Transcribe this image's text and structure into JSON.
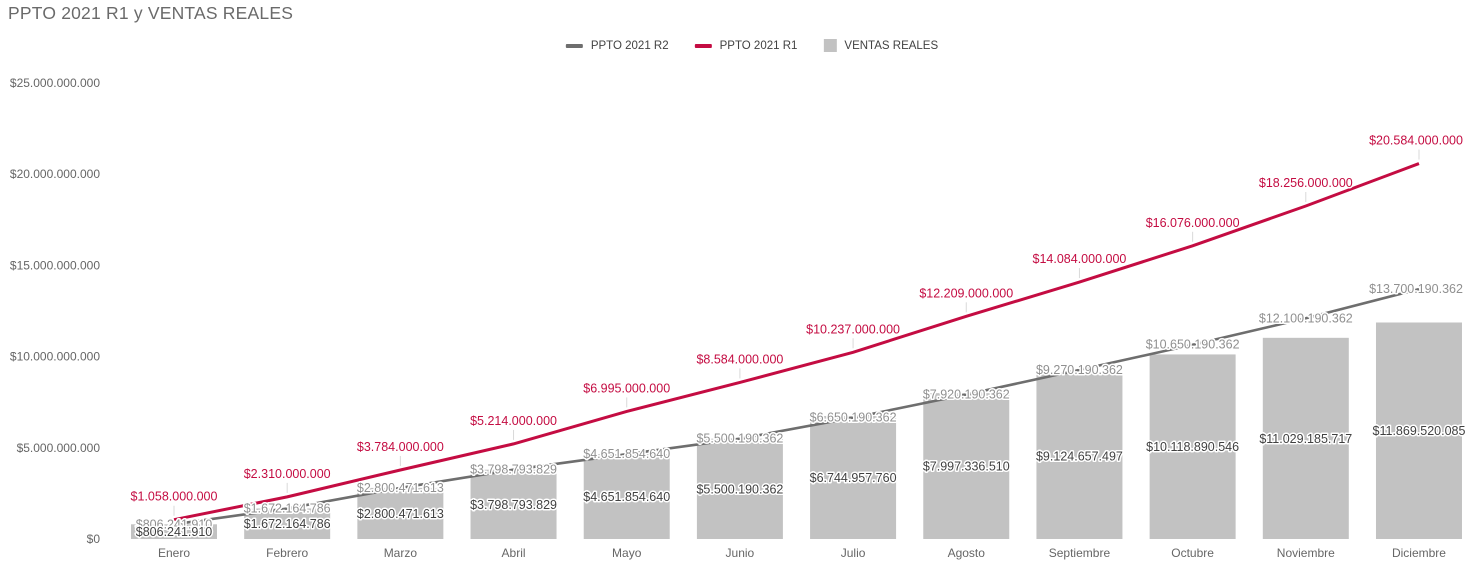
{
  "title": "PPTO 2021 R1 y VENTAS REALES",
  "legend": {
    "items": [
      {
        "label": "PPTO 2021 R2",
        "swatch": "line",
        "color": "#6e6e6e"
      },
      {
        "label": "PPTO 2021 R1",
        "swatch": "line",
        "color": "#c40c42"
      },
      {
        "label": "VENTAS REALES",
        "swatch": "square",
        "color": "#c2c2c2"
      }
    ]
  },
  "chart_data": {
    "type": "combo-bar-line",
    "title": "PPTO 2021 R1 y VENTAS REALES",
    "categories": [
      "Enero",
      "Febrero",
      "Marzo",
      "Abril",
      "Mayo",
      "Junio",
      "Julio",
      "Agosto",
      "Septiembre",
      "Octubre",
      "Noviembre",
      "Diciembre"
    ],
    "y_axis": {
      "min": 0,
      "max": 25000000000,
      "tick_labels": [
        "$0",
        "$5.000.000.000",
        "$10.000.000.000",
        "$15.000.000.000",
        "$20.000.000.000",
        "$25.000.000.000"
      ],
      "grid": false
    },
    "legend_position": "top-center",
    "series": [
      {
        "name": "VENTAS REALES",
        "type": "bar",
        "color": "#c2c2c2",
        "label_color": "#404040",
        "values": [
          806241910,
          1672164786,
          2800471613,
          3798793829,
          4651854640,
          5500190362,
          6744957760,
          7997336510,
          9124657497,
          10118890546,
          11029185717,
          11869520085
        ],
        "labels": [
          "$806.241.910",
          "$1.672.164.786",
          "$2.800.471.613",
          "$3.798.793.829",
          "$4.651.854.640",
          "$5.500.190.362",
          "$6.744.957.760",
          "$7.997.336.510",
          "$9.124.657.497",
          "$10.118.890.546",
          "$11.029.185.717",
          "$11.869.520.085"
        ]
      },
      {
        "name": "PPTO 2021 R2",
        "type": "line",
        "color": "#6e6e6e",
        "label_color": "#909090",
        "values": [
          806241910,
          1672164786,
          2800471613,
          3798793829,
          4651854640,
          5500190362,
          6650190362,
          7920190362,
          9270190362,
          10650190362,
          12100190362,
          13700190362
        ],
        "labels": [
          "$806.241.910",
          "$1.672.164.786",
          "$2.800.471.613",
          "$3.798.793.829",
          "$4.651.854.640",
          "$5.500.190.362",
          "$6.650.190.362",
          "$7.920.190.362",
          "$9.270.190.362",
          "$10.650.190.362",
          "$12.100.190.362",
          "$13.700.190.362"
        ]
      },
      {
        "name": "PPTO 2021 R1",
        "type": "line",
        "color": "#c40c42",
        "label_color": "#c40c42",
        "values": [
          1058000000,
          2310000000,
          3784000000,
          5214000000,
          6995000000,
          8584000000,
          10237000000,
          12209000000,
          14084000000,
          16076000000,
          18256000000,
          20584000000
        ],
        "labels": [
          "$1.058.000.000",
          "$2.310.000.000",
          "$3.784.000.000",
          "$5.214.000.000",
          "$6.995.000.000",
          "$8.584.000.000",
          "$10.237.000.000",
          "$12.209.000.000",
          "$14.084.000.000",
          "$16.076.000.000",
          "$18.256.000.000",
          "$20.584.000.000"
        ]
      }
    ]
  }
}
